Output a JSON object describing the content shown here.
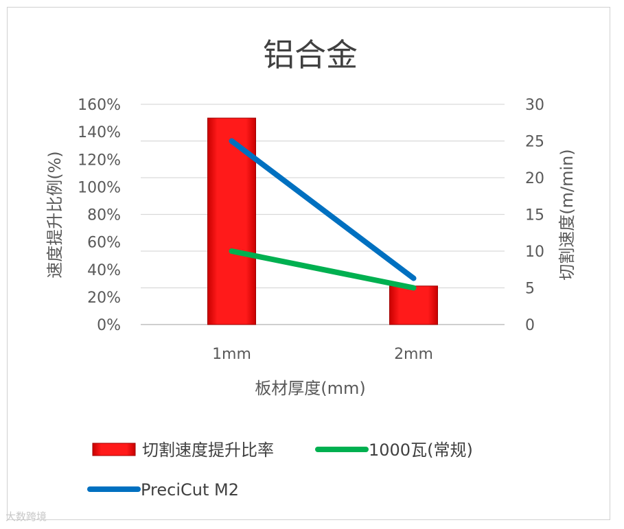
{
  "chart_data": {
    "type": "bar+line",
    "title": "铝合金",
    "xlabel": "板材厚度(mm)",
    "ylabel_left": "速度提升比例(%)",
    "ylabel_right": "切割速度(m/min)",
    "categories": [
      "1mm",
      "2mm"
    ],
    "y_left": {
      "min": 0,
      "max": 160,
      "step": 20,
      "ticks": [
        "0%",
        "20%",
        "40%",
        "60%",
        "80%",
        "100%",
        "120%",
        "140%",
        "160%"
      ]
    },
    "y_right": {
      "min": 0,
      "max": 30,
      "step": 5,
      "ticks": [
        "0",
        "5",
        "10",
        "15",
        "20",
        "25",
        "30"
      ]
    },
    "grid": true,
    "legend_position": "bottom",
    "series": [
      {
        "name": "切割速度提升比率",
        "kind": "bar",
        "axis": "left",
        "values": [
          150,
          28
        ],
        "color": "#ff0000"
      },
      {
        "name": "1000瓦(常规)",
        "kind": "line",
        "axis": "right",
        "values": [
          10,
          5
        ],
        "color": "#00b050"
      },
      {
        "name": "PreciCut M2",
        "kind": "line",
        "axis": "right",
        "values": [
          25,
          6.3
        ],
        "color": "#0070c0"
      }
    ]
  },
  "watermark": "大数跨境"
}
